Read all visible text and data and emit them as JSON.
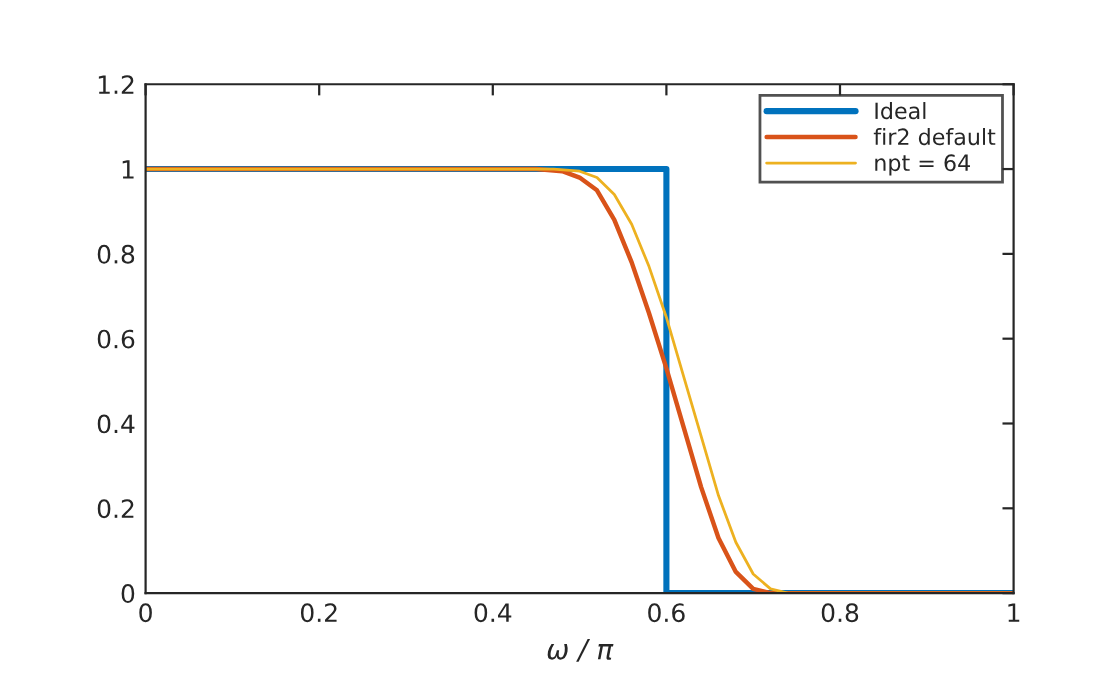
{
  "chart_data": {
    "type": "line",
    "xlabel": "ω / π",
    "xlim": [
      0,
      1
    ],
    "ylim": [
      0,
      1.2
    ],
    "xticks": [
      0,
      0.2,
      0.4,
      0.6,
      0.8,
      1
    ],
    "yticks": [
      0,
      0.2,
      0.4,
      0.6,
      0.8,
      1,
      1.2
    ],
    "grid": false,
    "legend": "top right",
    "line_style": "solid",
    "marker": "none",
    "series": [
      {
        "name": "Ideal",
        "color": "#0072bd",
        "x": [
          0,
          0.6,
          0.6,
          1
        ],
        "values": [
          1,
          1,
          0,
          0
        ]
      },
      {
        "name": "fir2 default",
        "color": "#d95319",
        "x": [
          0,
          0.45,
          0.48,
          0.5,
          0.52,
          0.54,
          0.56,
          0.58,
          0.6,
          0.62,
          0.64,
          0.66,
          0.68,
          0.7,
          0.72,
          1
        ],
        "values": [
          1,
          1,
          0.995,
          0.98,
          0.95,
          0.88,
          0.78,
          0.66,
          0.53,
          0.39,
          0.25,
          0.13,
          0.05,
          0.01,
          0,
          0
        ]
      },
      {
        "name": "npt = 64",
        "color": "#edb120",
        "x": [
          0,
          0.47,
          0.5,
          0.52,
          0.54,
          0.56,
          0.58,
          0.6,
          0.62,
          0.64,
          0.66,
          0.68,
          0.7,
          0.72,
          0.74,
          1
        ],
        "values": [
          1,
          1,
          0.995,
          0.98,
          0.94,
          0.87,
          0.77,
          0.65,
          0.51,
          0.37,
          0.23,
          0.12,
          0.045,
          0.01,
          0,
          0
        ]
      }
    ]
  }
}
